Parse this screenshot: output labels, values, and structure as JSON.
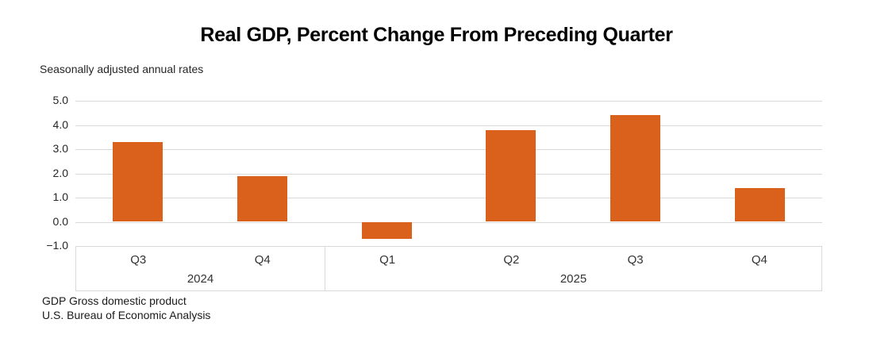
{
  "title": "Real GDP, Percent Change From Preceding Quarter",
  "subtitle": "Seasonally adjusted annual rates",
  "footnotes": {
    "line1": "GDP Gross domestic product",
    "line2": "U.S. Bureau of Economic Analysis"
  },
  "colors": {
    "bar": "#d9611c",
    "gridline": "#d9d9d9",
    "axis_border": "#d9d9d9",
    "text": "#262626",
    "title_text": "#000000"
  },
  "chart_data": {
    "type": "bar",
    "title": "Real GDP, Percent Change From Preceding Quarter",
    "subtitle": "Seasonally adjusted annual rates",
    "categories": [
      "Q3",
      "Q4",
      "Q1",
      "Q2",
      "Q3",
      "Q4"
    ],
    "year_groups": [
      {
        "label": "2024",
        "span": 2
      },
      {
        "label": "2025",
        "span": 4
      }
    ],
    "values": [
      3.3,
      1.9,
      -0.7,
      3.8,
      4.4,
      1.4
    ],
    "xlabel": "",
    "ylabel": "",
    "ylim": [
      -1.0,
      5.0
    ],
    "ytick_step": 1.0,
    "ytick_labels": [
      "5.0",
      "4.0",
      "3.0",
      "2.0",
      "1.0",
      "0.0",
      "−1.0"
    ],
    "ytick_values": [
      5.0,
      4.0,
      3.0,
      2.0,
      1.0,
      0.0,
      -1.0
    ],
    "grid": true,
    "legend": false,
    "bar_color": "#d9611c"
  }
}
